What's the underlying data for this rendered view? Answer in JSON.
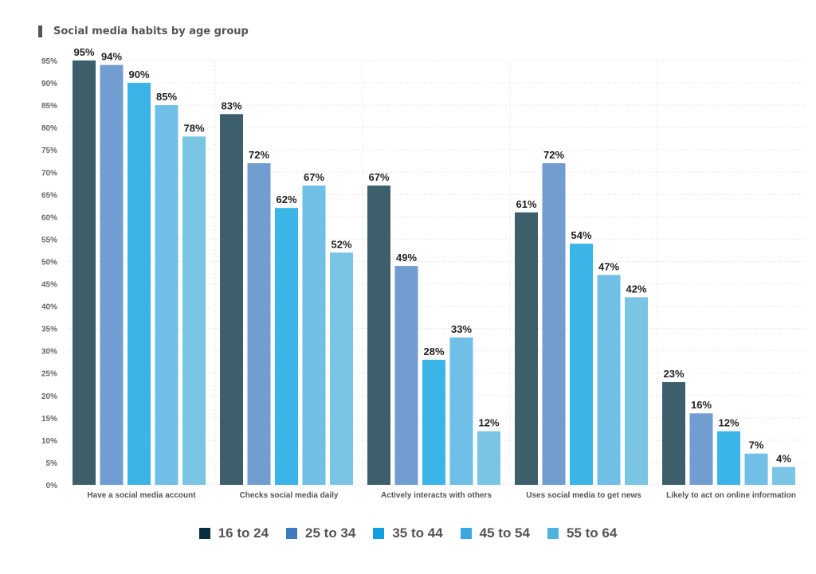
{
  "chart_data": {
    "type": "bar",
    "title": "Social media habits by age group",
    "categories": [
      "Have a social media account",
      "Checks social media daily",
      "Actively interacts with others",
      "Uses social media to get news",
      "Likely to act on online information"
    ],
    "series": [
      {
        "name": "16 to 24",
        "values": [
          95,
          83,
          67,
          61,
          23
        ],
        "color": "#3d5f6c",
        "legend_color": "#0b2d42"
      },
      {
        "name": "25 to 34",
        "values": [
          94,
          72,
          49,
          72,
          16
        ],
        "color": "#719dd0",
        "legend_color": "#3f7bc0"
      },
      {
        "name": "35 to 44",
        "values": [
          90,
          62,
          28,
          54,
          12
        ],
        "color": "#3bb5e8",
        "legend_color": "#109fe0"
      },
      {
        "name": "45 to 54",
        "values": [
          85,
          67,
          33,
          47,
          7
        ],
        "color": "#70bfe6",
        "legend_color": "#3aa6e0"
      },
      {
        "name": "55 to 64",
        "values": [
          78,
          52,
          12,
          42,
          4
        ],
        "color": "#7bc5e4",
        "legend_color": "#4fb4dc"
      }
    ],
    "yticks": [
      "0%",
      "5%",
      "10%",
      "15%",
      "20%",
      "25%",
      "30%",
      "35%",
      "40%",
      "45%",
      "50%",
      "55%",
      "60%",
      "65%",
      "70%",
      "75%",
      "80%",
      "85%",
      "90%",
      "95%"
    ],
    "ylim": [
      0,
      95
    ],
    "unit": "%",
    "grid": true,
    "legend": "bottom"
  }
}
